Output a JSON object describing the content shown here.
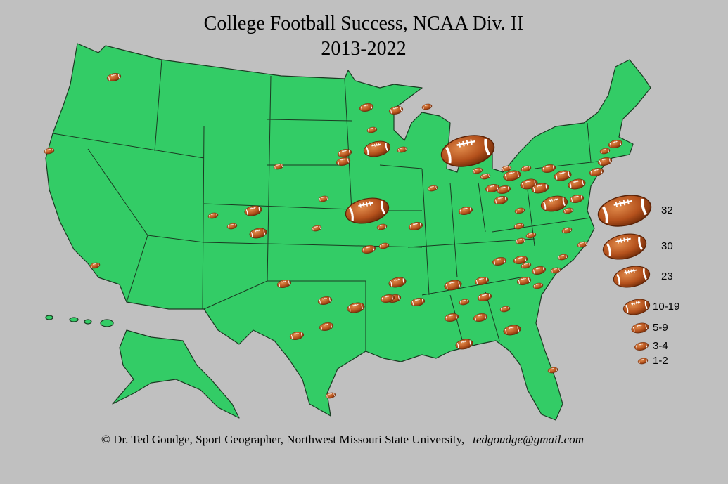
{
  "header": {
    "title": [
      "College Football Success, NCAA Div. II",
      "2013-2022"
    ]
  },
  "legend": {
    "items": [
      {
        "label": "32"
      },
      {
        "label": "30"
      },
      {
        "label": "23"
      },
      {
        "label": "10-19"
      },
      {
        "label": "5-9"
      },
      {
        "label": "3-4"
      },
      {
        "label": "1-2"
      }
    ]
  },
  "credit": {
    "text": "© Dr. Ted Goudge, Sport Geographer,  Northwest Missouri State University,",
    "email": "tedgoudge@gmail.com"
  }
}
